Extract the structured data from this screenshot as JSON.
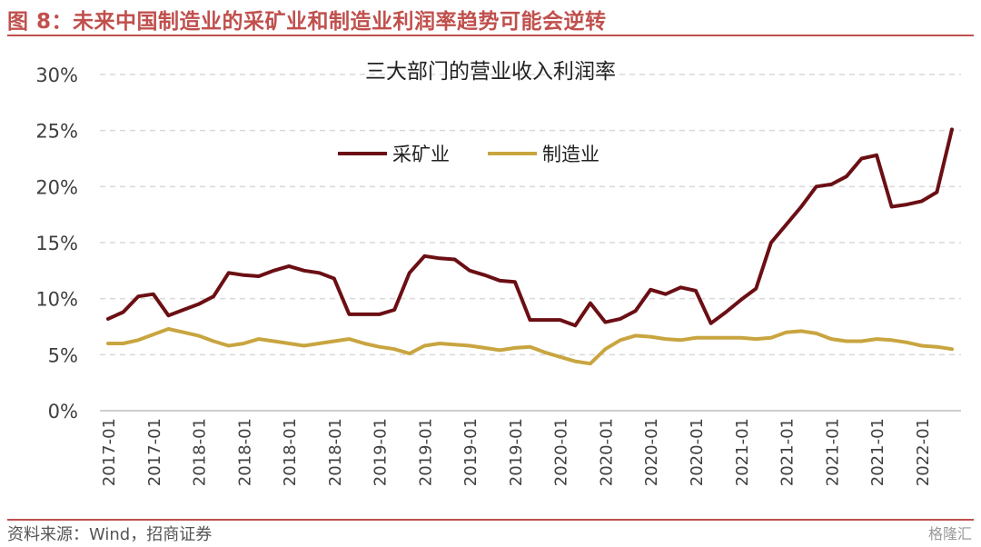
{
  "figure": {
    "title": "图 8：未来中国制造业的采矿业和制造业利润率趋势可能会逆转",
    "source": "资料来源：Wind，招商证券",
    "watermark": "格隆汇"
  },
  "colors": {
    "accent": "#c0504d",
    "mining": "#6b0f14",
    "manufacturing": "#c9a540",
    "grid": "#d9d9d9"
  },
  "chart_data": {
    "type": "line",
    "title": "三大部门的营业收入利润率",
    "xlabel": "",
    "ylabel": "",
    "ylim": [
      0,
      30
    ],
    "yticks": [
      "0%",
      "5%",
      "10%",
      "15%",
      "20%",
      "25%",
      "30%"
    ],
    "grid": true,
    "legend": "top-center",
    "xtick_labels": [
      "2017-01",
      "2017-01",
      "2018-01",
      "2018-01",
      "2018-01",
      "2018-01",
      "2019-01",
      "2019-01",
      "2019-01",
      "2019-01",
      "2020-01",
      "2020-01",
      "2020-01",
      "2020-01",
      "2021-01",
      "2021-01",
      "2021-01",
      "2021-01",
      "2022-01"
    ],
    "series": [
      {
        "name": "采矿业",
        "color": "#6b0f14",
        "values": [
          8.2,
          8.8,
          10.2,
          10.4,
          8.5,
          9.0,
          9.5,
          10.2,
          12.3,
          12.1,
          12.0,
          12.5,
          12.9,
          12.5,
          12.3,
          11.8,
          8.6,
          8.6,
          8.6,
          9.0,
          12.3,
          13.8,
          13.6,
          13.5,
          12.5,
          12.1,
          11.6,
          11.5,
          8.1,
          8.1,
          8.1,
          7.6,
          9.6,
          7.9,
          8.2,
          8.9,
          10.8,
          10.4,
          11.0,
          10.7,
          7.8,
          8.8,
          9.9,
          10.9,
          15.0,
          16.6,
          18.2,
          20.0,
          20.2,
          20.9,
          22.5,
          22.8,
          18.2,
          18.4,
          18.7,
          19.5,
          25.1
        ]
      },
      {
        "name": "制造业",
        "color": "#c9a540",
        "values": [
          6.0,
          6.0,
          6.3,
          6.8,
          7.3,
          7.0,
          6.7,
          6.2,
          5.8,
          6.0,
          6.4,
          6.2,
          6.0,
          5.8,
          6.0,
          6.2,
          6.4,
          6.0,
          5.7,
          5.5,
          5.1,
          5.8,
          6.0,
          5.9,
          5.8,
          5.6,
          5.4,
          5.6,
          5.7,
          5.2,
          4.8,
          4.4,
          4.2,
          5.5,
          6.3,
          6.7,
          6.6,
          6.4,
          6.3,
          6.5,
          6.5,
          6.5,
          6.5,
          6.4,
          6.5,
          7.0,
          7.1,
          6.9,
          6.4,
          6.2,
          6.2,
          6.4,
          6.3,
          6.1,
          5.8,
          5.7,
          5.5
        ]
      }
    ]
  }
}
